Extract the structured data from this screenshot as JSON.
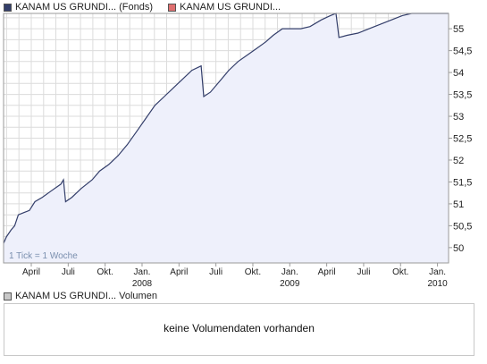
{
  "legend": {
    "fonds_label": "KANAM US GRUNDI... (Fonds)",
    "fonds_color": "#333e6a",
    "index_label": "KANAM US GRUNDI...",
    "index_color": "#e07070"
  },
  "tick_note": "1 Tick = 1 Woche",
  "volume": {
    "legend_label": "KANAM US GRUNDI... Volumen",
    "legend_color": "#c8c8c8",
    "message": "keine Volumendaten vorhanden"
  },
  "chart_data": {
    "type": "area",
    "x_labels": [
      {
        "t": 0.75,
        "label": "April"
      },
      {
        "t": 1.75,
        "label": "Juli"
      },
      {
        "t": 2.75,
        "label": "Okt."
      },
      {
        "t": 3.75,
        "label": "Jan.",
        "sub": "2008"
      },
      {
        "t": 4.75,
        "label": "April"
      },
      {
        "t": 5.75,
        "label": "Juli"
      },
      {
        "t": 6.75,
        "label": "Okt."
      },
      {
        "t": 7.75,
        "label": "Jan.",
        "sub": "2009"
      },
      {
        "t": 8.75,
        "label": "April"
      },
      {
        "t": 9.75,
        "label": "Juli"
      },
      {
        "t": 10.75,
        "label": "Okt."
      },
      {
        "t": 11.75,
        "label": "Jan.",
        "sub": "2010"
      }
    ],
    "y_ticks": [
      50,
      50.5,
      51,
      51.5,
      52,
      52.5,
      53,
      53.5,
      54,
      54.5,
      55
    ],
    "y_tick_labels": [
      "50",
      "50,5",
      "51",
      "51,5",
      "52",
      "52,5",
      "53",
      "53,5",
      "54",
      "54,5",
      "55"
    ],
    "ylim": [
      49.65,
      55.35
    ],
    "series": [
      {
        "values": [
          [
            0.0,
            50.1
          ],
          [
            0.08,
            50.25
          ],
          [
            0.2,
            50.4
          ],
          [
            0.3,
            50.5
          ],
          [
            0.4,
            50.75
          ],
          [
            0.55,
            50.8
          ],
          [
            0.7,
            50.85
          ],
          [
            0.85,
            51.05
          ],
          [
            1.05,
            51.15
          ],
          [
            1.3,
            51.3
          ],
          [
            1.55,
            51.45
          ],
          [
            1.62,
            51.55
          ],
          [
            1.68,
            51.05
          ],
          [
            1.85,
            51.15
          ],
          [
            2.1,
            51.35
          ],
          [
            2.4,
            51.55
          ],
          [
            2.6,
            51.75
          ],
          [
            2.85,
            51.9
          ],
          [
            3.1,
            52.1
          ],
          [
            3.35,
            52.35
          ],
          [
            3.6,
            52.65
          ],
          [
            3.85,
            52.95
          ],
          [
            4.1,
            53.25
          ],
          [
            4.35,
            53.45
          ],
          [
            4.6,
            53.65
          ],
          [
            4.85,
            53.85
          ],
          [
            5.1,
            54.05
          ],
          [
            5.35,
            54.15
          ],
          [
            5.42,
            53.45
          ],
          [
            5.6,
            53.55
          ],
          [
            5.85,
            53.8
          ],
          [
            6.1,
            54.05
          ],
          [
            6.35,
            54.25
          ],
          [
            6.6,
            54.4
          ],
          [
            6.85,
            54.55
          ],
          [
            7.1,
            54.7
          ],
          [
            7.3,
            54.85
          ],
          [
            7.55,
            55.0
          ],
          [
            8.05,
            55.0
          ],
          [
            8.3,
            55.05
          ],
          [
            8.6,
            55.2
          ],
          [
            8.85,
            55.3
          ],
          [
            9.0,
            55.35
          ],
          [
            9.08,
            54.8
          ],
          [
            9.3,
            54.85
          ],
          [
            9.6,
            54.9
          ],
          [
            9.9,
            55.0
          ],
          [
            10.2,
            55.1
          ],
          [
            10.5,
            55.2
          ],
          [
            10.8,
            55.3
          ],
          [
            11.05,
            55.35
          ],
          [
            12.05,
            55.35
          ]
        ]
      }
    ]
  }
}
